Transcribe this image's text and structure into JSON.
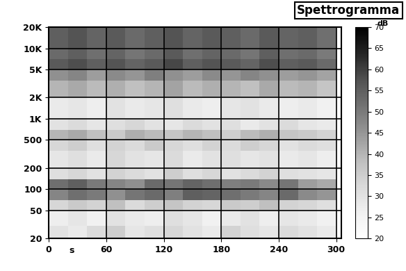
{
  "chart_data": {
    "type": "heatmap",
    "title": "Spettrogramma",
    "xlabel": "s",
    "colorbar_label": "dB",
    "log": "y",
    "grid": true,
    "xlim": [
      0,
      305
    ],
    "xticks": [
      0,
      60,
      120,
      180,
      240,
      300
    ],
    "ylim": [
      20,
      20000
    ],
    "yticks": [
      20,
      50,
      100,
      200,
      500,
      {
        "value": 1000,
        "label": "1K"
      },
      {
        "value": 2000,
        "label": "2K"
      },
      {
        "value": 5000,
        "label": "5K"
      },
      {
        "value": 10000,
        "label": "10K"
      },
      {
        "value": 20000,
        "label": "20K"
      }
    ],
    "x_bins": [
      0,
      20,
      40,
      60,
      80,
      100,
      120,
      140,
      160,
      180,
      200,
      220,
      240,
      260,
      280,
      300
    ],
    "y_bins": [
      20,
      30,
      50,
      70,
      100,
      140,
      200,
      350,
      500,
      700,
      1000,
      2000,
      3500,
      5000,
      7000,
      10000,
      20000
    ],
    "cells": [
      [
        30,
        28,
        32,
        35,
        29,
        31,
        33,
        30,
        28,
        34,
        31,
        29,
        32,
        30,
        28
      ],
      [
        27,
        29,
        26,
        30,
        28,
        27,
        31,
        29,
        26,
        28,
        30,
        27,
        29,
        28,
        26
      ],
      [
        33,
        36,
        34,
        38,
        32,
        35,
        37,
        34,
        33,
        36,
        35,
        38,
        34,
        33,
        31
      ],
      [
        48,
        52,
        50,
        46,
        51,
        53,
        49,
        55,
        54,
        52,
        50,
        48,
        53,
        47,
        45
      ],
      [
        52,
        55,
        50,
        48,
        46,
        53,
        51,
        54,
        52,
        49,
        50,
        47,
        51,
        44,
        42
      ],
      [
        31,
        33,
        30,
        34,
        32,
        30,
        35,
        31,
        33,
        30,
        32,
        34,
        31,
        30,
        29
      ],
      [
        29,
        31,
        28,
        33,
        30,
        29,
        32,
        28,
        30,
        31,
        29,
        30,
        28,
        29,
        27
      ],
      [
        33,
        35,
        31,
        34,
        32,
        36,
        33,
        31,
        34,
        32,
        35,
        33,
        30,
        32,
        31
      ],
      [
        40,
        42,
        38,
        36,
        41,
        39,
        37,
        40,
        38,
        35,
        39,
        41,
        37,
        36,
        34
      ],
      [
        30,
        32,
        29,
        31,
        33,
        30,
        29,
        32,
        30,
        31,
        28,
        30,
        32,
        29,
        28
      ],
      [
        28,
        29,
        27,
        30,
        28,
        29,
        31,
        28,
        27,
        29,
        30,
        28,
        27,
        28,
        26
      ],
      [
        40,
        42,
        39,
        41,
        38,
        40,
        43,
        39,
        41,
        40,
        38,
        42,
        39,
        40,
        37
      ],
      [
        46,
        48,
        44,
        47,
        45,
        49,
        46,
        44,
        47,
        45,
        48,
        46,
        44,
        45,
        43
      ],
      [
        56,
        58,
        55,
        57,
        54,
        56,
        59,
        55,
        57,
        56,
        54,
        58,
        55,
        56,
        53
      ],
      [
        53,
        55,
        52,
        54,
        51,
        53,
        56,
        52,
        54,
        53,
        51,
        55,
        52,
        53,
        50
      ],
      [
        55,
        57,
        54,
        56,
        53,
        55,
        57,
        54,
        56,
        55,
        53,
        56,
        54,
        55,
        52
      ]
    ],
    "colorbar_range": [
      20,
      70
    ],
    "colorbar_ticks": [
      20,
      25,
      30,
      35,
      40,
      45,
      50,
      55,
      60,
      65,
      70
    ]
  }
}
